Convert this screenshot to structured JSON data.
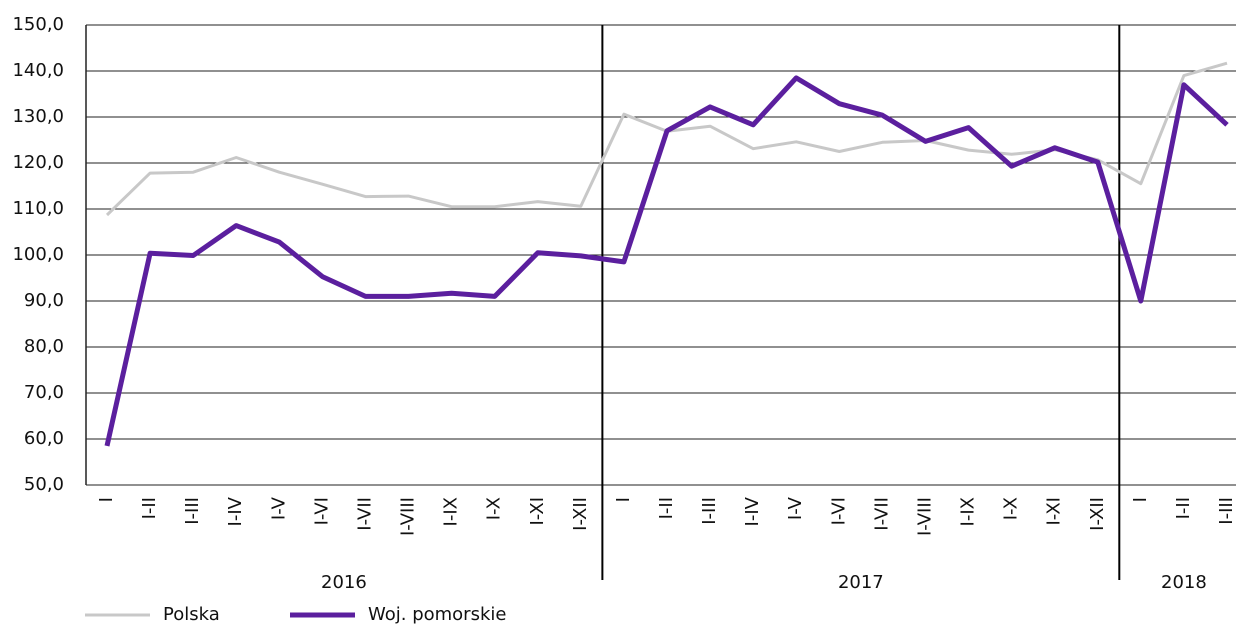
{
  "chart_data": {
    "type": "line",
    "groups": [
      {
        "name": "2016",
        "categories": [
          "I",
          "I-II",
          "I-III",
          "I-IV",
          "I-V",
          "I-VI",
          "I-VII",
          "I-VIII",
          "I-IX",
          "I-X",
          "I-XI",
          "I-XII"
        ]
      },
      {
        "name": "2017",
        "categories": [
          "I",
          "I-II",
          "I-III",
          "I-IV",
          "I-V",
          "I-VI",
          "I-VII",
          "I-VIII",
          "I-IX",
          "I-X",
          "I-XI",
          "I-XII"
        ]
      },
      {
        "name": "2018",
        "categories": [
          "I",
          "I-II",
          "I-III"
        ]
      }
    ],
    "series": [
      {
        "name": "Polska",
        "color": "#c8c8c8",
        "values": [
          108.7,
          117.8,
          118.0,
          121.2,
          118.0,
          115.4,
          112.7,
          112.8,
          110.5,
          110.5,
          111.6,
          110.6,
          130.6,
          126.9,
          128.0,
          123.1,
          124.6,
          122.5,
          124.5,
          124.9,
          122.8,
          121.9,
          122.9,
          120.7,
          115.5,
          139.0,
          141.7
        ]
      },
      {
        "name": "Woj. pomorskie",
        "color": "#5b1f9e",
        "values": [
          58.5,
          100.4,
          99.9,
          106.4,
          102.8,
          95.3,
          91.0,
          91.0,
          91.7,
          91.0,
          100.5,
          99.8,
          98.5,
          127.0,
          132.2,
          128.3,
          138.5,
          132.9,
          130.4,
          124.7,
          127.7,
          119.3,
          123.3,
          120.2,
          90.0,
          137.0,
          128.3
        ]
      }
    ],
    "ylim": [
      50,
      150
    ],
    "yticks": [
      {
        "value": 50,
        "label": "50,0"
      },
      {
        "value": 60,
        "label": "60,0"
      },
      {
        "value": 70,
        "label": "70,0"
      },
      {
        "value": 80,
        "label": "80,0"
      },
      {
        "value": 90,
        "label": "90,0"
      },
      {
        "value": 100,
        "label": "100,0"
      },
      {
        "value": 110,
        "label": "110,0"
      },
      {
        "value": 120,
        "label": "120,0"
      },
      {
        "value": 130,
        "label": "130,0"
      },
      {
        "value": 140,
        "label": "140,0"
      },
      {
        "value": 150,
        "label": "150,0"
      }
    ],
    "grid": true,
    "legend": "bottom"
  }
}
